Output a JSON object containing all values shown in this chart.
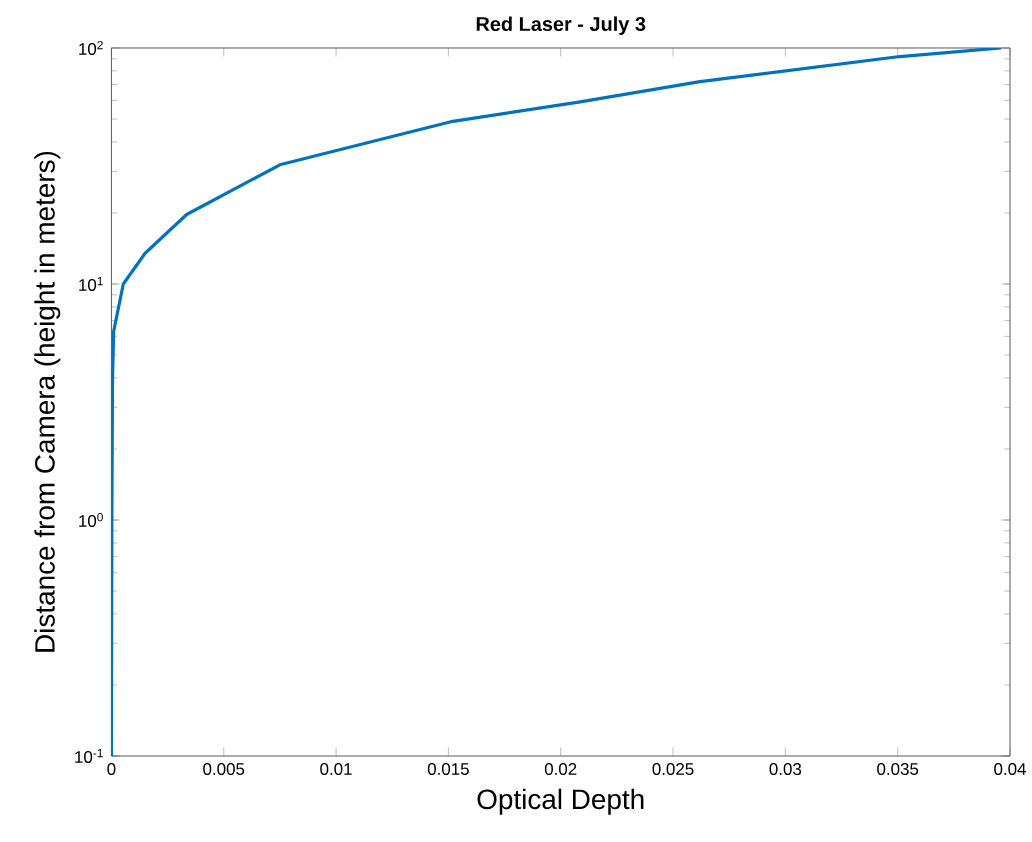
{
  "chart_data": {
    "type": "line",
    "title": "Red Laser - July 3",
    "xlabel": "Optical Depth",
    "ylabel": "Distance from Camera (height in meters)",
    "x": [
      0,
      2e-05,
      5e-05,
      0.0001,
      0.00053,
      0.0015,
      0.00335,
      0.0075,
      0.0152,
      0.0208,
      0.0262,
      0.0351,
      0.0396
    ],
    "series": [
      {
        "color": "#0072bd",
        "values": [
          0.1,
          1,
          4,
          6.3,
          10,
          13.5,
          19.7,
          32,
          48.9,
          59,
          72,
          92,
          100
        ]
      }
    ],
    "xlim": [
      0,
      0.04
    ],
    "ylim": [
      0.1,
      100
    ],
    "log": "y",
    "line_style": "solid",
    "marker": "none",
    "xticks": [
      0,
      0.005,
      0.01,
      0.015,
      0.02,
      0.025,
      0.03,
      0.035,
      0.04
    ],
    "yticks": [
      {
        "value": 0.1,
        "label": "10$^{-1}$"
      },
      {
        "value": 1,
        "label": "10$^{0}$"
      },
      {
        "value": 10,
        "label": "10$^{1}$"
      },
      {
        "value": 100,
        "label": "10$^{2}$"
      }
    ]
  }
}
